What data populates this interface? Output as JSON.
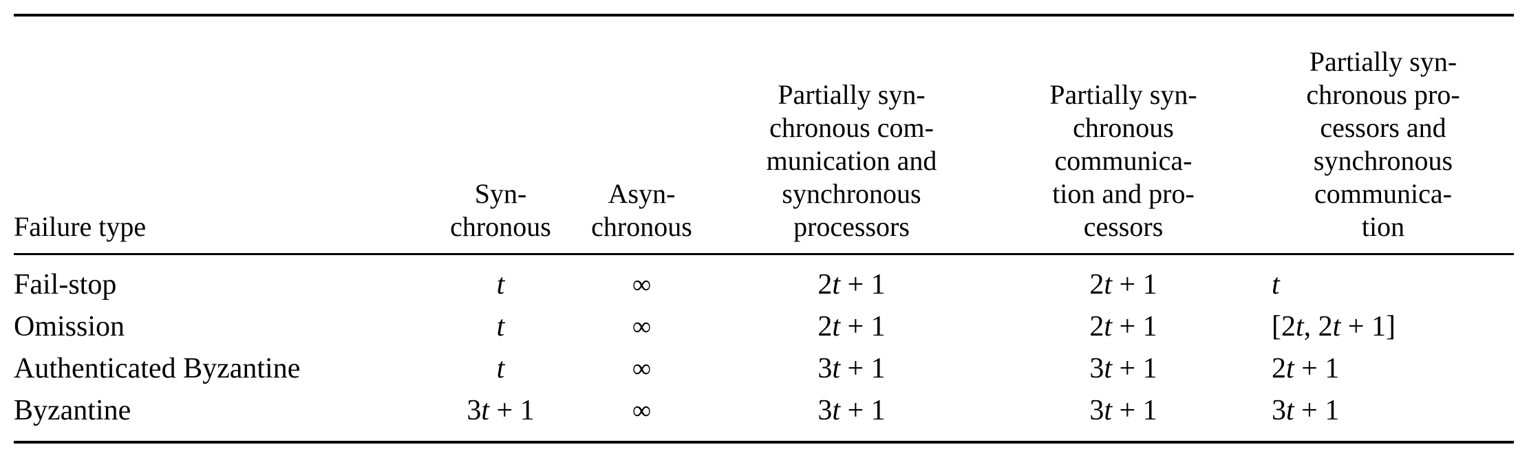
{
  "table": {
    "headers": [
      "Failure type",
      "Syn-\nchronous",
      "Asyn-\nchronous",
      "Partially syn-\nchronous com-\nmunication and\nsynchronous\nprocessors",
      "Partially syn-\nchronous\ncommunica-\ntion and pro-\ncessors",
      "Partially syn-\nchronous pro-\ncessors and\nsynchronous\ncommunica-\ntion"
    ],
    "rows": [
      {
        "label": "Fail-stop",
        "cells": [
          {
            "main": "",
            "var": "t",
            "rest": ""
          },
          {
            "main": "∞",
            "var": "",
            "rest": ""
          },
          {
            "main": "2",
            "var": "t",
            "rest": " + 1"
          },
          {
            "main": "2",
            "var": "t",
            "rest": " + 1"
          },
          {
            "main": "",
            "var": "t",
            "rest": ""
          }
        ]
      },
      {
        "label": "Omission",
        "cells": [
          {
            "main": "",
            "var": "t",
            "rest": ""
          },
          {
            "main": "∞",
            "var": "",
            "rest": ""
          },
          {
            "main": "2",
            "var": "t",
            "rest": " + 1"
          },
          {
            "main": "2",
            "var": "t",
            "rest": " + 1"
          },
          {
            "main": "[2",
            "var": "t",
            "rest": ", 2",
            "var2": "t",
            "rest2": " + 1]"
          }
        ]
      },
      {
        "label": "Authenticated Byzantine",
        "cells": [
          {
            "main": "",
            "var": "t",
            "rest": ""
          },
          {
            "main": "∞",
            "var": "",
            "rest": ""
          },
          {
            "main": "3",
            "var": "t",
            "rest": " + 1"
          },
          {
            "main": "3",
            "var": "t",
            "rest": " + 1"
          },
          {
            "main": "2",
            "var": "t",
            "rest": " + 1"
          }
        ]
      },
      {
        "label": "Byzantine",
        "cells": [
          {
            "main": "3",
            "var": "t",
            "rest": " + 1"
          },
          {
            "main": "∞",
            "var": "",
            "rest": ""
          },
          {
            "main": "3",
            "var": "t",
            "rest": " + 1"
          },
          {
            "main": "3",
            "var": "t",
            "rest": " + 1"
          },
          {
            "main": "3",
            "var": "t",
            "rest": " + 1"
          }
        ]
      }
    ]
  }
}
